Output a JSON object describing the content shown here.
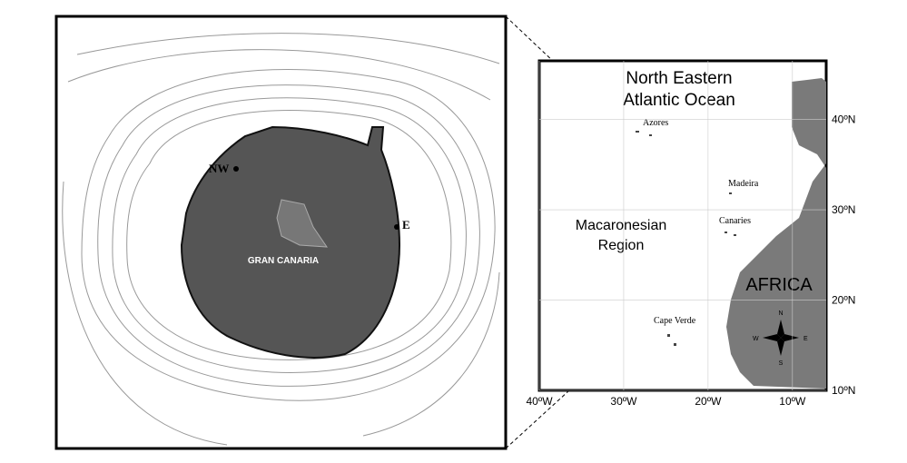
{
  "inset": {
    "labels": {
      "nw": "NW",
      "e": "E",
      "island": "GRAN CANARIA"
    }
  },
  "map": {
    "title_lines": [
      "North Eastern",
      "Atlantic Ocean"
    ],
    "region_lines": [
      "Macaronesian",
      "Region"
    ],
    "places": {
      "azores": "Azores",
      "madeira": "Madeira",
      "canaries": "Canaries",
      "cape_verde": "Cape Verde"
    },
    "continent": "AFRICA",
    "compass": {
      "n": "N",
      "s": "S",
      "e": "E",
      "w": "W"
    },
    "xlim": [
      -40,
      -6
    ],
    "ylim": [
      10,
      46.5
    ],
    "xticks": [
      {
        "value": -40,
        "label": "40ºW"
      },
      {
        "value": -30,
        "label": "30ºW"
      },
      {
        "value": -20,
        "label": "20ºW"
      },
      {
        "value": -10,
        "label": "10ºW"
      }
    ],
    "yticks": [
      {
        "value": 40,
        "label": "40ºN"
      },
      {
        "value": 30,
        "label": "30ºN"
      },
      {
        "value": 20,
        "label": "20ºN"
      },
      {
        "value": 10,
        "label": "10ºN"
      }
    ]
  }
}
